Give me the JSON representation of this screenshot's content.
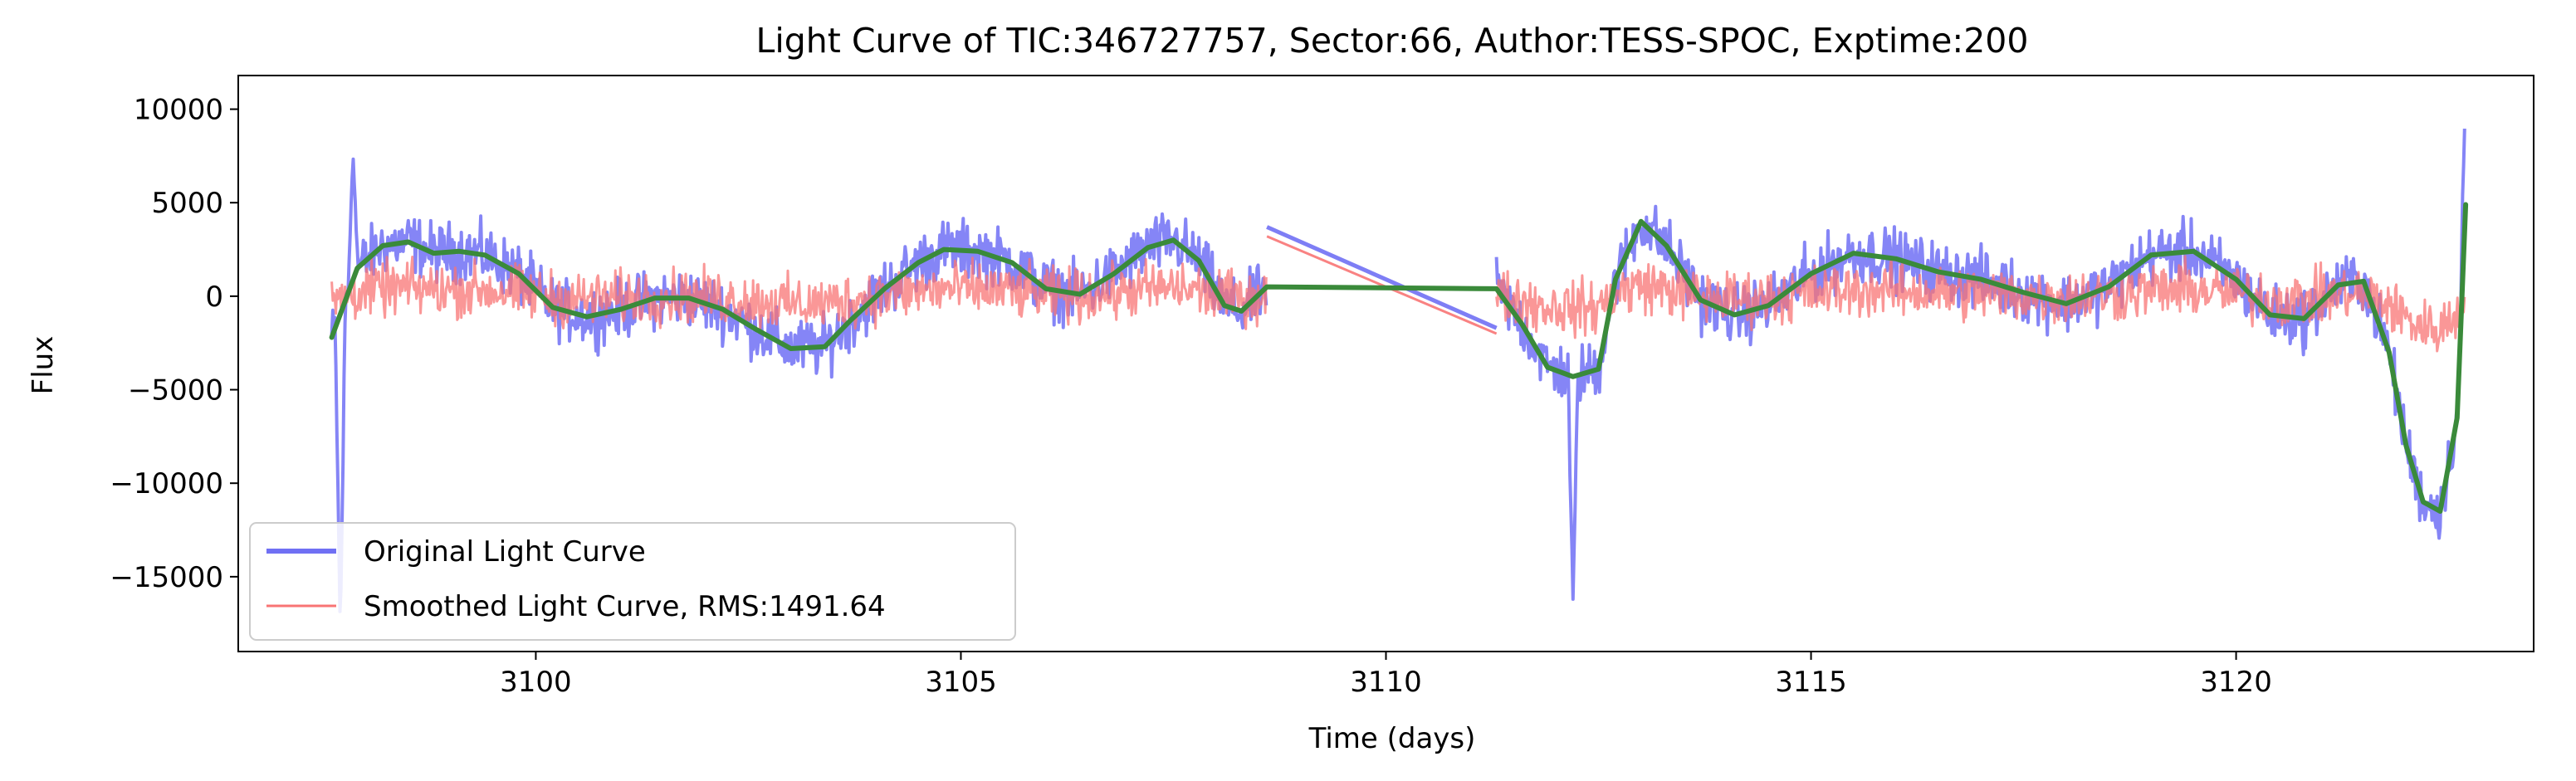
{
  "chart_data": {
    "type": "line",
    "title": "Light Curve of TIC:346727757, Sector:66, Author:TESS-SPOC, Exptime:200",
    "xlabel": "Time (days)",
    "ylabel": "Flux",
    "xlim": [
      3096.5,
      3123.5
    ],
    "ylim": [
      -19000,
      11800
    ],
    "x_ticks": [
      3100,
      3105,
      3110,
      3115,
      3120
    ],
    "y_ticks": [
      -15000,
      -10000,
      -5000,
      0,
      5000,
      10000
    ],
    "x_tick_labels": [
      "3100",
      "3105",
      "3110",
      "3115",
      "3120"
    ],
    "y_tick_labels": [
      "−15000",
      "−10000",
      "−5000",
      "0",
      "5000",
      "10000"
    ],
    "grid": false,
    "legend_position": "lower-left",
    "series": [
      {
        "name": "Original Light Curve",
        "color": "#7070f4",
        "role": "original",
        "segments": [
          {
            "start": 3097.6,
            "end": 3108.6
          },
          {
            "start": 3111.3,
            "end": 3122.7
          }
        ],
        "noise_amplitude": 2300,
        "spikes": [
          {
            "x": 3097.7,
            "y": -18000
          },
          {
            "x": 3097.85,
            "y": 7600
          },
          {
            "x": 3112.2,
            "y": -16200
          },
          {
            "x": 3122.7,
            "y": 10500
          }
        ]
      },
      {
        "name": "Smoothed Light Curve, RMS:1491.64",
        "color": "#f87474",
        "role": "residual",
        "segments": [
          {
            "start": 3097.6,
            "end": 3108.6
          },
          {
            "start": 3111.3,
            "end": 3122.7
          }
        ],
        "noise_amplitude": 2100
      },
      {
        "name": "",
        "color": "#3a8a3a",
        "role": "smooth",
        "points": [
          [
            3097.6,
            -2200
          ],
          [
            3097.9,
            1500
          ],
          [
            3098.2,
            2700
          ],
          [
            3098.5,
            2900
          ],
          [
            3098.8,
            2300
          ],
          [
            3099.1,
            2400
          ],
          [
            3099.4,
            2200
          ],
          [
            3099.8,
            1200
          ],
          [
            3100.2,
            -600
          ],
          [
            3100.6,
            -1100
          ],
          [
            3101.0,
            -700
          ],
          [
            3101.4,
            -100
          ],
          [
            3101.8,
            -100
          ],
          [
            3102.2,
            -700
          ],
          [
            3102.6,
            -1800
          ],
          [
            3103.0,
            -2800
          ],
          [
            3103.4,
            -2700
          ],
          [
            3103.7,
            -1300
          ],
          [
            3104.1,
            400
          ],
          [
            3104.5,
            1800
          ],
          [
            3104.8,
            2500
          ],
          [
            3105.2,
            2400
          ],
          [
            3105.6,
            1800
          ],
          [
            3106.0,
            400
          ],
          [
            3106.4,
            100
          ],
          [
            3106.8,
            1200
          ],
          [
            3107.2,
            2600
          ],
          [
            3107.5,
            3000
          ],
          [
            3107.8,
            1900
          ],
          [
            3108.1,
            -500
          ],
          [
            3108.3,
            -800
          ],
          [
            3108.6,
            500
          ],
          [
            3111.3,
            400
          ],
          [
            3111.6,
            -1500
          ],
          [
            3111.9,
            -3800
          ],
          [
            3112.2,
            -4300
          ],
          [
            3112.5,
            -3900
          ],
          [
            3112.7,
            900
          ],
          [
            3113.0,
            4000
          ],
          [
            3113.3,
            2700
          ],
          [
            3113.7,
            -200
          ],
          [
            3114.1,
            -1000
          ],
          [
            3114.5,
            -500
          ],
          [
            3115.0,
            1200
          ],
          [
            3115.5,
            2300
          ],
          [
            3116.0,
            2000
          ],
          [
            3116.5,
            1300
          ],
          [
            3117.0,
            900
          ],
          [
            3117.5,
            200
          ],
          [
            3118.0,
            -400
          ],
          [
            3118.5,
            500
          ],
          [
            3119.0,
            2200
          ],
          [
            3119.5,
            2400
          ],
          [
            3120.0,
            900
          ],
          [
            3120.4,
            -1000
          ],
          [
            3120.8,
            -1200
          ],
          [
            3121.2,
            600
          ],
          [
            3121.5,
            800
          ],
          [
            3121.8,
            -3000
          ],
          [
            3122.0,
            -8000
          ],
          [
            3122.2,
            -11000
          ],
          [
            3122.4,
            -11500
          ],
          [
            3122.6,
            -6500
          ],
          [
            3122.7,
            4900
          ]
        ]
      }
    ]
  }
}
